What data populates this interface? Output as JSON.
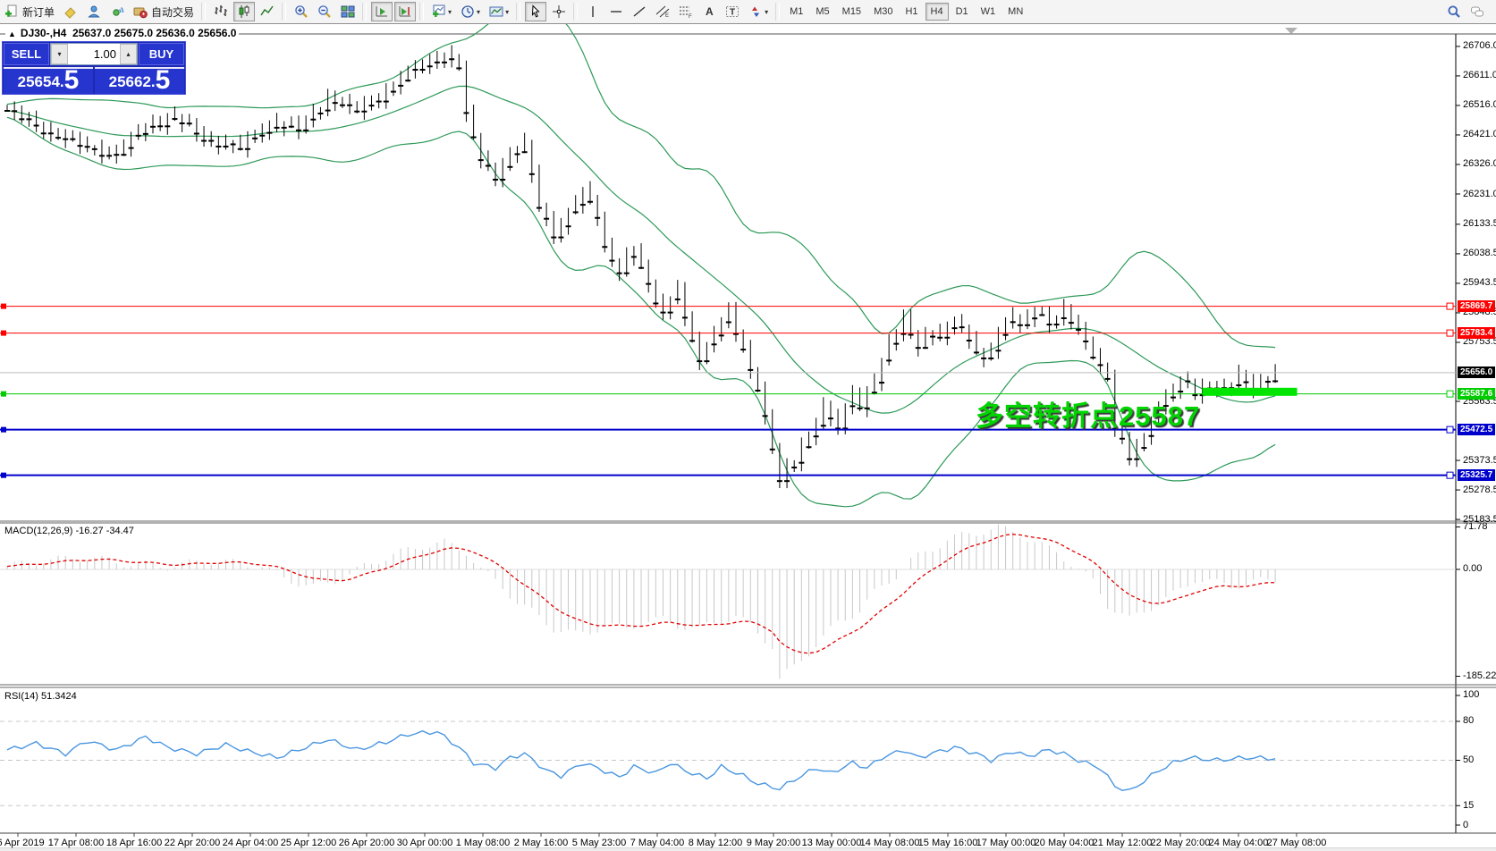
{
  "toolbar": {
    "groups": [
      {
        "items": [
          {
            "name": "new-order-button",
            "icon": "new-order-icon",
            "label": "新订单"
          },
          {
            "name": "eraser-button",
            "icon": "eraser-icon"
          },
          {
            "name": "profile-button",
            "icon": "profile-icon"
          },
          {
            "name": "signal-button",
            "icon": "signal-icon"
          },
          {
            "name": "auto-trading-button",
            "icon": "auto-trading-icon",
            "label": "自动交易"
          }
        ]
      },
      {
        "items": [
          {
            "name": "bar-chart-button",
            "icon": "bar-chart-icon"
          },
          {
            "name": "candlestick-button",
            "icon": "candlestick-icon",
            "pressed": true
          },
          {
            "name": "line-chart-button",
            "icon": "line-chart-icon"
          }
        ]
      },
      {
        "items": [
          {
            "name": "zoom-in-button",
            "icon": "zoom-in-icon"
          },
          {
            "name": "zoom-out-button",
            "icon": "zoom-out-icon"
          },
          {
            "name": "tile-windows-button",
            "icon": "tile-windows-icon"
          }
        ]
      },
      {
        "items": [
          {
            "name": "auto-scroll-button",
            "icon": "auto-scroll-icon",
            "pressed": true
          },
          {
            "name": "chart-shift-button",
            "icon": "chart-shift-icon",
            "pressed": true
          }
        ]
      },
      {
        "items": [
          {
            "name": "new-chart-button",
            "icon": "new-chart-icon",
            "dropdown": true
          },
          {
            "name": "periods-button",
            "icon": "periods-icon",
            "dropdown": true
          },
          {
            "name": "templates-button",
            "icon": "templates-icon",
            "dropdown": true
          }
        ]
      },
      {
        "items": [
          {
            "name": "cursor-button",
            "icon": "cursor-icon",
            "pressed": true
          },
          {
            "name": "crosshair-button",
            "icon": "crosshair-icon"
          }
        ]
      },
      {
        "items": [
          {
            "name": "vertical-line-button",
            "icon": "vertical-line-icon"
          },
          {
            "name": "horizontal-line-button",
            "icon": "horizontal-line-icon"
          },
          {
            "name": "trendline-button",
            "icon": "trendline-icon"
          },
          {
            "name": "channel-button",
            "icon": "channel-icon"
          },
          {
            "name": "fibonacci-button",
            "icon": "fibonacci-icon"
          },
          {
            "name": "text-button",
            "icon": "text-icon"
          },
          {
            "name": "text-label-button",
            "icon": "text-label-icon"
          },
          {
            "name": "arrows-button",
            "icon": "arrows-icon",
            "dropdown": true
          }
        ]
      },
      {
        "type": "timeframes",
        "items": [
          {
            "label": "M1"
          },
          {
            "label": "M5"
          },
          {
            "label": "M15"
          },
          {
            "label": "M30"
          },
          {
            "label": "H1"
          },
          {
            "label": "H4",
            "pressed": true
          },
          {
            "label": "D1"
          },
          {
            "label": "W1"
          },
          {
            "label": "MN"
          }
        ]
      }
    ],
    "right_items": [
      {
        "name": "search-button",
        "icon": "search-icon"
      },
      {
        "name": "chat-button",
        "icon": "chat-icon"
      }
    ]
  },
  "symbol_header": {
    "symbol": "DJ30-,H4",
    "ohlc": "25637.0 25675.0 25636.0 25656.0"
  },
  "trade_panel": {
    "sell_label": "SELL",
    "buy_label": "BUY",
    "volume": "1.00",
    "sell_price": "25654.5",
    "buy_price": "25662.5"
  },
  "price_axis": {
    "ticks": [
      26706.0,
      26611.0,
      26516.0,
      26421.0,
      26326.0,
      26231.0,
      26133.5,
      26038.5,
      25943.5,
      25848.5,
      25753.5,
      25563.5,
      25373.5,
      25278.5,
      25183.5
    ]
  },
  "macd_pane": {
    "label": "MACD(12,26,9) -16.27 -34.47",
    "ticks": [
      71.78,
      0,
      -185.22
    ]
  },
  "rsi_pane": {
    "label": "RSI(14) 51.3424",
    "ticks": [
      100,
      80,
      50,
      15,
      0
    ],
    "levels": [
      80,
      50,
      15
    ]
  },
  "time_axis": {
    "labels": [
      "16 Apr 2019",
      "17 Apr 08:00",
      "18 Apr 16:00",
      "22 Apr 20:00",
      "24 Apr 04:00",
      "25 Apr 12:00",
      "26 Apr 20:00",
      "30 Apr 00:00",
      "1 May 08:00",
      "2 May 16:00",
      "5 May 23:00",
      "7 May 04:00",
      "8 May 12:00",
      "9 May 20:00",
      "13 May 00:00",
      "14 May 08:00",
      "15 May 16:00",
      "17 May 00:00",
      "20 May 04:00",
      "21 May 12:00",
      "22 May 20:00",
      "24 May 04:00",
      "27 May 08:00"
    ]
  },
  "annotation": {
    "text": "多空转折点25587",
    "color": "#00d400"
  },
  "colors": {
    "bollinger": "#2e9958",
    "bull": "#ffffff",
    "bear": "#000000",
    "wick": "#000000",
    "resistance": "#ff0000",
    "support": "#0000cc",
    "pivot_green": "#00cc00",
    "current_line": "#bdbdbd",
    "current_label_bg": "#000000",
    "macd_hist": "#c8c8c8",
    "macd_signal": "#e00000",
    "rsi_line": "#4a96e0",
    "grid_dash": "#c8c8c8",
    "highlight_bar": "#00e400"
  },
  "chart_data": {
    "type": "candlestick",
    "symbol": "DJ30-",
    "period": "H4",
    "bars": 175,
    "price_ylim": [
      25178,
      26746
    ],
    "close_anchors": [
      [
        0,
        26500
      ],
      [
        5,
        26440
      ],
      [
        11,
        26380
      ],
      [
        15,
        26360
      ],
      [
        19,
        26450
      ],
      [
        23,
        26480
      ],
      [
        27,
        26410
      ],
      [
        32,
        26380
      ],
      [
        36,
        26460
      ],
      [
        40,
        26440
      ],
      [
        44,
        26540
      ],
      [
        48,
        26500
      ],
      [
        52,
        26560
      ],
      [
        55,
        26620
      ],
      [
        58,
        26660
      ],
      [
        60,
        26680
      ],
      [
        62,
        26640
      ],
      [
        63,
        26480
      ],
      [
        65,
        26350
      ],
      [
        67,
        26290
      ],
      [
        69,
        26350
      ],
      [
        71,
        26390
      ],
      [
        73,
        26200
      ],
      [
        75,
        26100
      ],
      [
        77,
        26160
      ],
      [
        79,
        26240
      ],
      [
        81,
        26170
      ],
      [
        82,
        26060
      ],
      [
        84,
        25980
      ],
      [
        86,
        26050
      ],
      [
        88,
        25940
      ],
      [
        90,
        25850
      ],
      [
        92,
        25930
      ],
      [
        93,
        25820
      ],
      [
        95,
        25700
      ],
      [
        97,
        25790
      ],
      [
        99,
        25850
      ],
      [
        101,
        25720
      ],
      [
        103,
        25610
      ],
      [
        105,
        25420
      ],
      [
        106,
        25310
      ],
      [
        108,
        25370
      ],
      [
        110,
        25450
      ],
      [
        112,
        25550
      ],
      [
        114,
        25480
      ],
      [
        116,
        25590
      ],
      [
        117,
        25540
      ],
      [
        119,
        25640
      ],
      [
        121,
        25750
      ],
      [
        123,
        25820
      ],
      [
        125,
        25740
      ],
      [
        127,
        25800
      ],
      [
        128,
        25770
      ],
      [
        130,
        25820
      ],
      [
        132,
        25760
      ],
      [
        134,
        25700
      ],
      [
        136,
        25780
      ],
      [
        138,
        25840
      ],
      [
        139,
        25800
      ],
      [
        141,
        25860
      ],
      [
        143,
        25820
      ],
      [
        145,
        25850
      ],
      [
        147,
        25790
      ],
      [
        149,
        25720
      ],
      [
        151,
        25640
      ],
      [
        152,
        25480
      ],
      [
        154,
        25380
      ],
      [
        156,
        25450
      ],
      [
        158,
        25550
      ],
      [
        160,
        25600
      ],
      [
        162,
        25630
      ],
      [
        163,
        25590
      ],
      [
        165,
        25620
      ],
      [
        167,
        25600
      ],
      [
        169,
        25640
      ],
      [
        171,
        25610
      ],
      [
        173,
        25640
      ],
      [
        174,
        25656
      ]
    ],
    "hlines": [
      {
        "price": 25869.7,
        "color": "#ff0000",
        "width": 1
      },
      {
        "price": 25783.4,
        "color": "#ff0000",
        "width": 1
      },
      {
        "price": 25587.6,
        "color": "#00cc00",
        "width": 1
      },
      {
        "price": 25472.5,
        "color": "#0000cc",
        "width": 2
      },
      {
        "price": 25325.7,
        "color": "#0000cc",
        "width": 2
      }
    ],
    "current_price": 25656.0,
    "highlight_bar": {
      "bar_start": 164,
      "bar_end": 177,
      "price": 25590,
      "thickness": 9
    },
    "indicators": [
      {
        "type": "bollinger",
        "period": 20,
        "deviation": 2
      },
      {
        "type": "macd",
        "fast": 12,
        "slow": 26,
        "signal_period": 9,
        "value": -16.27,
        "signal_value": -34.47,
        "ylim": [
          -195,
          78.5
        ],
        "hist_anchors": [
          [
            0,
            5
          ],
          [
            5,
            15
          ],
          [
            11,
            20
          ],
          [
            16,
            10
          ],
          [
            22,
            5
          ],
          [
            28,
            15
          ],
          [
            35,
            5
          ],
          [
            38,
            -15
          ],
          [
            42,
            -30
          ],
          [
            46,
            -15
          ],
          [
            49,
            5
          ],
          [
            53,
            25
          ],
          [
            57,
            40
          ],
          [
            60,
            45
          ],
          [
            63,
            30
          ],
          [
            65,
            0
          ],
          [
            68,
            -30
          ],
          [
            70,
            -55
          ],
          [
            73,
            -80
          ],
          [
            75,
            -100
          ],
          [
            78,
            -110
          ],
          [
            80,
            -105
          ],
          [
            82,
            -95
          ],
          [
            85,
            -100
          ],
          [
            87,
            -90
          ],
          [
            90,
            -85
          ],
          [
            92,
            -95
          ],
          [
            95,
            -100
          ],
          [
            97,
            -90
          ],
          [
            100,
            -80
          ],
          [
            102,
            -95
          ],
          [
            105,
            -130
          ],
          [
            106,
            -185
          ],
          [
            108,
            -165
          ],
          [
            110,
            -140
          ],
          [
            112,
            -115
          ],
          [
            114,
            -90
          ],
          [
            117,
            -70
          ],
          [
            119,
            -40
          ],
          [
            122,
            -10
          ],
          [
            124,
            15
          ],
          [
            127,
            35
          ],
          [
            129,
            50
          ],
          [
            132,
            60
          ],
          [
            134,
            65
          ],
          [
            136,
            70
          ],
          [
            139,
            60
          ],
          [
            141,
            45
          ],
          [
            144,
            30
          ],
          [
            146,
            10
          ],
          [
            149,
            -20
          ],
          [
            151,
            -60
          ],
          [
            154,
            -85
          ],
          [
            156,
            -70
          ],
          [
            159,
            -50
          ],
          [
            161,
            -35
          ],
          [
            163,
            -16
          ],
          [
            168,
            -28
          ],
          [
            174,
            -16.27
          ]
        ]
      },
      {
        "type": "rsi",
        "period": 14,
        "value": 51.3424,
        "ylim": [
          -6.2,
          105.5
        ],
        "anchors": [
          [
            0,
            58
          ],
          [
            4,
            63
          ],
          [
            8,
            55
          ],
          [
            11,
            65
          ],
          [
            15,
            58
          ],
          [
            19,
            68
          ],
          [
            22,
            60
          ],
          [
            26,
            55
          ],
          [
            30,
            62
          ],
          [
            33,
            57
          ],
          [
            37,
            52
          ],
          [
            41,
            60
          ],
          [
            44,
            66
          ],
          [
            48,
            58
          ],
          [
            52,
            64
          ],
          [
            55,
            70
          ],
          [
            59,
            72
          ],
          [
            62,
            60
          ],
          [
            64,
            48
          ],
          [
            67,
            44
          ],
          [
            69,
            52
          ],
          [
            71,
            55
          ],
          [
            74,
            42
          ],
          [
            76,
            38
          ],
          [
            79,
            48
          ],
          [
            81,
            44
          ],
          [
            84,
            37
          ],
          [
            86,
            45
          ],
          [
            89,
            40
          ],
          [
            91,
            48
          ],
          [
            93,
            42
          ],
          [
            96,
            36
          ],
          [
            98,
            45
          ],
          [
            101,
            38
          ],
          [
            103,
            32
          ],
          [
            106,
            28
          ],
          [
            108,
            35
          ],
          [
            111,
            44
          ],
          [
            113,
            40
          ],
          [
            116,
            48
          ],
          [
            118,
            44
          ],
          [
            120,
            52
          ],
          [
            123,
            58
          ],
          [
            125,
            52
          ],
          [
            128,
            57
          ],
          [
            130,
            60
          ],
          [
            133,
            55
          ],
          [
            135,
            50
          ],
          [
            138,
            57
          ],
          [
            140,
            53
          ],
          [
            143,
            58
          ],
          [
            145,
            55
          ],
          [
            147,
            50
          ],
          [
            150,
            44
          ],
          [
            152,
            30
          ],
          [
            154,
            26
          ],
          [
            156,
            34
          ],
          [
            158,
            42
          ],
          [
            160,
            48
          ],
          [
            162,
            52
          ],
          [
            166,
            50
          ],
          [
            170,
            52
          ],
          [
            174,
            51.34
          ]
        ]
      }
    ]
  }
}
